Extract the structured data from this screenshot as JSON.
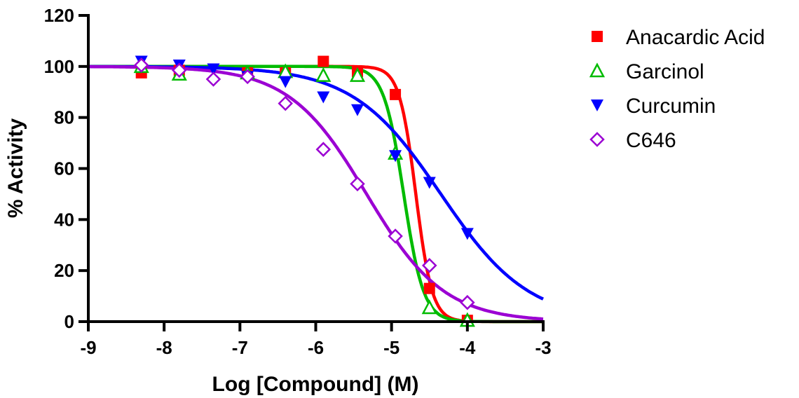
{
  "chart_data": {
    "type": "scatter",
    "title": "",
    "xlabel": "Log [Compound] (M)",
    "ylabel": "% Activity",
    "xlim": [
      -9,
      -3
    ],
    "ylim": [
      0,
      120
    ],
    "xticks": [
      -9,
      -8,
      -7,
      -6,
      -5,
      -4,
      -3
    ],
    "xtick_labels": [
      "-9",
      "-8",
      "-7",
      "-6",
      "-5",
      "-4",
      "-3"
    ],
    "yticks": [
      0,
      20,
      40,
      60,
      80,
      100,
      120
    ],
    "ytick_labels": [
      "0",
      "20",
      "40",
      "60",
      "80",
      "100",
      "120"
    ],
    "grid": false,
    "legend_position": "top-right",
    "series": [
      {
        "name": "Anacardic Acid",
        "marker": "square",
        "color": "#ff0000",
        "x": [
          -8.3,
          -7.8,
          -6.9,
          -6.4,
          -5.9,
          -5.45,
          -4.95,
          -4.5,
          -4.0
        ],
        "y": [
          97.5,
          98.5,
          97.5,
          97.5,
          102,
          98,
          89,
          13,
          0.5
        ],
        "fit": {
          "top": 100,
          "bottom": 0,
          "log_ic50": -4.68,
          "hill": -4.0
        }
      },
      {
        "name": "Garcinol",
        "marker": "triangle-up-open",
        "color": "#00bb00",
        "x": [
          -8.3,
          -7.8,
          -6.9,
          -6.4,
          -5.9,
          -5.45,
          -4.95,
          -4.5,
          -4.0
        ],
        "y": [
          100,
          97,
          97.5,
          98,
          96.5,
          96.5,
          66,
          5.5,
          0.5
        ],
        "fit": {
          "top": 100,
          "bottom": 0,
          "log_ic50": -4.84,
          "hill": -3.3
        }
      },
      {
        "name": "Curcumin",
        "marker": "triangle-down",
        "color": "#0000ff",
        "x": [
          -8.3,
          -7.8,
          -7.35,
          -6.9,
          -6.4,
          -5.9,
          -5.45,
          -4.95,
          -4.5,
          -4.0
        ],
        "y": [
          102,
          100.5,
          99,
          96,
          94,
          88,
          83,
          65,
          54.5,
          34.5
        ],
        "fit": {
          "top": 100,
          "bottom": 0,
          "log_ic50": -4.35,
          "hill": -0.75
        }
      },
      {
        "name": "C646",
        "marker": "diamond-open",
        "color": "#9b00d3",
        "x": [
          -8.3,
          -7.8,
          -7.35,
          -6.9,
          -6.4,
          -5.9,
          -5.45,
          -4.95,
          -4.5,
          -4.0
        ],
        "y": [
          100.5,
          98.5,
          95,
          96,
          85.5,
          67.5,
          54,
          33.5,
          22,
          7.5
        ],
        "fit": {
          "top": 100,
          "bottom": 0,
          "log_ic50": -5.33,
          "hill": -0.85
        }
      }
    ]
  }
}
